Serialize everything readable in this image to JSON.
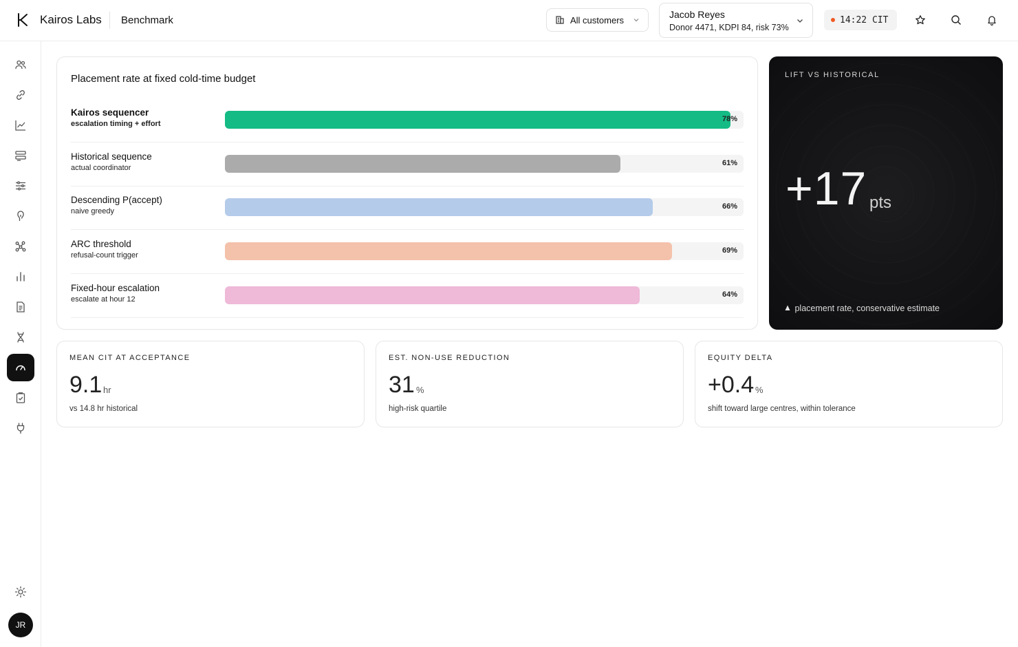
{
  "header": {
    "brand": "Kairos Labs",
    "page": "Benchmark",
    "customer_filter": "All customers",
    "donor_name": "Jacob Reyes",
    "donor_info": "Donor 4471, KDPI 84, risk 73%",
    "clock": "14:22 CIT",
    "status_color": "#f05a22"
  },
  "sidebar": {
    "items": [
      "people-icon",
      "link-icon",
      "line-chart-icon",
      "layers-icon",
      "sliders-icon",
      "kidney-icon",
      "graph-icon",
      "bar-chart-icon",
      "document-icon",
      "dna-icon",
      "gauge-icon",
      "clipboard-check-icon",
      "plug-icon"
    ],
    "active_item": "gauge-icon",
    "theme_icon": "sun-icon",
    "avatar": "JR"
  },
  "chart": {
    "title": "Placement rate at fixed cold-time budget"
  },
  "chart_data": {
    "type": "bar",
    "title": "Placement rate at fixed cold-time budget",
    "orientation": "horizontal",
    "xlim": [
      0,
      80
    ],
    "categories": [
      "Kairos sequencer",
      "Historical sequence",
      "Descending P(accept)",
      "ARC threshold",
      "Fixed-hour escalation"
    ],
    "subtitles": [
      "escalation timing + effort",
      "actual coordinator",
      "naive greedy",
      "refusal-count trigger",
      "escalate at hour 12"
    ],
    "values": [
      78,
      61,
      66,
      69,
      64
    ],
    "labels": [
      "78%",
      "61%",
      "66%",
      "69%",
      "64%"
    ],
    "colors": [
      "#14bb84",
      "#ababab",
      "#b4cbea",
      "#f4c1ab",
      "#efb9d8"
    ],
    "highlight": "Kairos sequencer"
  },
  "lift": {
    "title": "LIFT VS HISTORICAL",
    "value": "+17",
    "unit": "pts",
    "footnote": "placement rate, conservative estimate"
  },
  "stats": [
    {
      "title": "MEAN CIT AT ACCEPTANCE",
      "value": "9.1",
      "unit": "hr",
      "sub": "vs 14.8 hr historical"
    },
    {
      "title": "EST. NON-USE REDUCTION",
      "value": "31",
      "unit": "%",
      "sub": "high-risk quartile"
    },
    {
      "title": "EQUITY DELTA",
      "value": "+0.4",
      "unit": "%",
      "sub": "shift toward large centres, within tolerance"
    }
  ]
}
